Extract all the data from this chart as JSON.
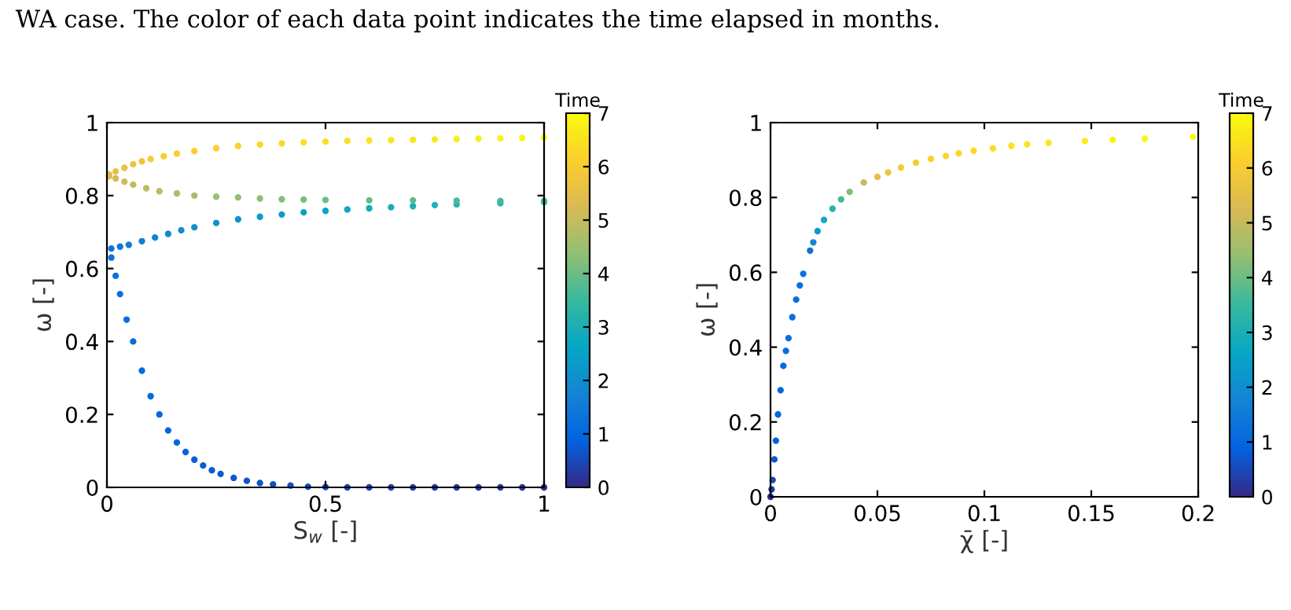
{
  "chart_data": [
    {
      "type": "scatter",
      "title": "WA case. The color of each data point indicates the time elapsed in months.",
      "xlabel": "S$_{w}$ [-]",
      "ylabel": "ω [-]",
      "clabel": "Time",
      "xlim": [
        0,
        1
      ],
      "ylim": [
        0,
        1
      ],
      "xticks": [
        0,
        0.5,
        1
      ],
      "yticks": [
        0,
        0.2,
        0.4,
        0.6,
        0.8,
        1
      ],
      "clim": [
        0,
        7
      ],
      "cticks": [
        0,
        1,
        2,
        3,
        4,
        5,
        6,
        7
      ],
      "marker": "circle",
      "grid": false,
      "x": [
        1.0,
        0.95,
        0.9,
        0.85,
        0.8,
        0.75,
        0.7,
        0.65,
        0.6,
        0.55,
        0.5,
        0.46,
        0.42,
        0.38,
        0.35,
        0.32,
        0.29,
        0.26,
        0.24,
        0.22,
        0.2,
        0.18,
        0.16,
        0.14,
        0.12,
        0.1,
        0.08,
        0.06,
        0.045,
        0.03,
        0.02,
        0.01,
        0.01,
        0.03,
        0.05,
        0.08,
        0.11,
        0.14,
        0.17,
        0.2,
        0.25,
        0.3,
        0.35,
        0.4,
        0.45,
        0.5,
        0.55,
        0.6,
        0.65,
        0.7,
        0.75,
        0.8,
        0.9,
        1.0,
        1.0,
        0.9,
        0.8,
        0.7,
        0.6,
        0.5,
        0.45,
        0.4,
        0.35,
        0.3,
        0.25,
        0.2,
        0.16,
        0.12,
        0.09,
        0.06,
        0.04,
        0.02,
        0.005,
        0.005,
        0.02,
        0.04,
        0.06,
        0.08,
        0.1,
        0.13,
        0.16,
        0.2,
        0.25,
        0.3,
        0.35,
        0.4,
        0.45,
        0.5,
        0.55,
        0.6,
        0.65,
        0.7,
        0.75,
        0.8,
        0.85,
        0.9,
        0.95,
        1.0
      ],
      "values": [
        0,
        0,
        0,
        0,
        0,
        0,
        0,
        0,
        0,
        0,
        0.001,
        0.002,
        0.005,
        0.008,
        0.012,
        0.018,
        0.026,
        0.037,
        0.047,
        0.06,
        0.076,
        0.097,
        0.123,
        0.156,
        0.2,
        0.25,
        0.32,
        0.4,
        0.46,
        0.53,
        0.58,
        0.63,
        0.655,
        0.66,
        0.665,
        0.675,
        0.685,
        0.695,
        0.705,
        0.713,
        0.725,
        0.735,
        0.742,
        0.748,
        0.754,
        0.758,
        0.762,
        0.765,
        0.768,
        0.771,
        0.774,
        0.776,
        0.779,
        0.782,
        0.785,
        0.785,
        0.786,
        0.787,
        0.787,
        0.788,
        0.789,
        0.79,
        0.792,
        0.795,
        0.797,
        0.8,
        0.806,
        0.812,
        0.82,
        0.83,
        0.838,
        0.847,
        0.853,
        0.858,
        0.866,
        0.876,
        0.886,
        0.894,
        0.9,
        0.908,
        0.915,
        0.922,
        0.93,
        0.936,
        0.94,
        0.943,
        0.946,
        0.948,
        0.95,
        0.951,
        0.952,
        0.953,
        0.954,
        0.955,
        0.956,
        0.957,
        0.958,
        0.96
      ],
      "cvalues": [
        0.1,
        0.14,
        0.18,
        0.22,
        0.26,
        0.3,
        0.34,
        0.38,
        0.42,
        0.46,
        0.5,
        0.53,
        0.56,
        0.6,
        0.63,
        0.66,
        0.7,
        0.73,
        0.76,
        0.8,
        0.84,
        0.88,
        0.92,
        0.96,
        1.0,
        1.04,
        1.08,
        1.12,
        1.16,
        1.2,
        1.24,
        1.28,
        1.3,
        1.4,
        1.5,
        1.6,
        1.7,
        1.8,
        1.9,
        2.0,
        2.1,
        2.2,
        2.3,
        2.4,
        2.5,
        2.6,
        2.7,
        2.8,
        2.9,
        3.0,
        3.1,
        3.2,
        3.3,
        3.4,
        3.5,
        3.6,
        3.7,
        3.8,
        3.9,
        4.0,
        4.1,
        4.2,
        4.3,
        4.4,
        4.5,
        4.6,
        4.7,
        4.8,
        4.9,
        5.0,
        5.1,
        5.2,
        5.3,
        5.4,
        5.5,
        5.6,
        5.7,
        5.8,
        5.9,
        6.0,
        6.05,
        6.1,
        6.15,
        6.2,
        6.25,
        6.3,
        6.35,
        6.4,
        6.45,
        6.5,
        6.55,
        6.6,
        6.65,
        6.7,
        6.75,
        6.8,
        6.9,
        7.0
      ]
    },
    {
      "type": "scatter",
      "xlabel": "χ̄ [-]",
      "ylabel": "ω [-]",
      "clabel": "Time",
      "xlim": [
        0,
        0.2
      ],
      "ylim": [
        0,
        1
      ],
      "xticks": [
        0,
        0.05,
        0.1,
        0.15,
        0.2
      ],
      "yticks": [
        0,
        0.2,
        0.4,
        0.6,
        0.8,
        1
      ],
      "clim": [
        0,
        7
      ],
      "cticks": [
        0,
        1,
        2,
        3,
        4,
        5,
        6,
        7
      ],
      "marker": "circle",
      "grid": false,
      "x": [
        0,
        0.0005,
        0.001,
        0.0018,
        0.0025,
        0.0035,
        0.0047,
        0.006,
        0.0072,
        0.0084,
        0.0102,
        0.012,
        0.0137,
        0.0153,
        0.0185,
        0.02,
        0.022,
        0.025,
        0.029,
        0.033,
        0.037,
        0.0436,
        0.05,
        0.055,
        0.061,
        0.068,
        0.075,
        0.082,
        0.088,
        0.095,
        0.104,
        0.1126,
        0.12,
        0.13,
        0.147,
        0.16,
        0.175,
        0.1975
      ],
      "values": [
        0,
        0.02,
        0.045,
        0.1,
        0.15,
        0.22,
        0.285,
        0.35,
        0.39,
        0.424,
        0.48,
        0.527,
        0.565,
        0.596,
        0.658,
        0.68,
        0.71,
        0.74,
        0.77,
        0.795,
        0.815,
        0.84,
        0.855,
        0.867,
        0.88,
        0.893,
        0.903,
        0.911,
        0.918,
        0.925,
        0.931,
        0.938,
        0.942,
        0.946,
        0.951,
        0.954,
        0.957,
        0.962
      ],
      "cvalues": [
        0.1,
        0.3,
        0.5,
        0.7,
        0.8,
        0.9,
        1.0,
        1.05,
        1.1,
        1.15,
        1.2,
        1.22,
        1.25,
        1.28,
        1.3,
        1.8,
        2.3,
        2.8,
        3.2,
        3.6,
        4.2,
        5.0,
        5.5,
        5.7,
        5.9,
        6.0,
        6.1,
        6.2,
        6.25,
        6.3,
        6.4,
        6.5,
        6.55,
        6.6,
        6.7,
        6.8,
        6.9,
        7.0
      ]
    }
  ]
}
